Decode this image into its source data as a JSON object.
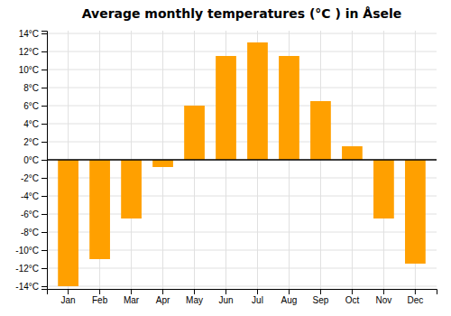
{
  "chart_data": {
    "type": "bar",
    "title": "Average monthly temperatures (°C ) in Åsele",
    "categories": [
      "Jan",
      "Feb",
      "Mar",
      "Apr",
      "May",
      "Jun",
      "Jul",
      "Aug",
      "Sep",
      "Oct",
      "Nov",
      "Dec"
    ],
    "values": [
      -14,
      -11,
      -6.5,
      -0.8,
      6,
      11.5,
      13,
      11.5,
      6.5,
      1.5,
      -6.5,
      -11.5
    ],
    "color": "#FFA000",
    "ylim": [
      -14.3,
      14.3
    ],
    "yticks": [
      {
        "value": -14,
        "label": "-14°C"
      },
      {
        "value": -12,
        "label": "-12°C"
      },
      {
        "value": -10,
        "label": "-10°C"
      },
      {
        "value": -8,
        "label": "-8°C"
      },
      {
        "value": -6,
        "label": "-6°C"
      },
      {
        "value": -4,
        "label": "-4°C"
      },
      {
        "value": -2,
        "label": "-2°C"
      },
      {
        "value": 0,
        "label": "0°C"
      },
      {
        "value": 2,
        "label": "2°C"
      },
      {
        "value": 4,
        "label": "4°C"
      },
      {
        "value": 6,
        "label": "6°C"
      },
      {
        "value": 8,
        "label": "8°C"
      },
      {
        "value": 10,
        "label": "10°C"
      },
      {
        "value": 12,
        "label": "12°C"
      },
      {
        "value": 14,
        "label": "14°C"
      }
    ],
    "grid": true
  }
}
